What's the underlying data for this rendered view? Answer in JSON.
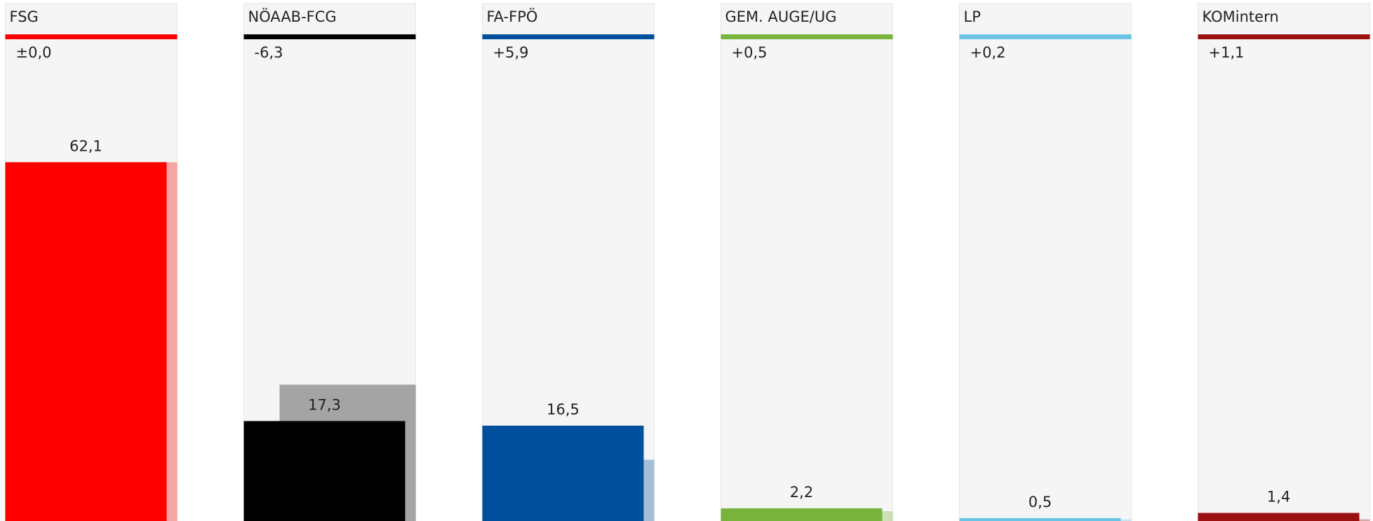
{
  "chart_data": {
    "type": "bar",
    "categories": [
      "FSG",
      "NÖAAB-FCG",
      "FA-FPÖ",
      "GEM. AUGE/UG",
      "LP",
      "KOMintern"
    ],
    "colors": [
      "#ff0000",
      "#000000",
      "#00509e",
      "#78b43c",
      "#6cc4e4",
      "#9b1010"
    ],
    "values": [
      62.1,
      17.3,
      16.5,
      2.2,
      0.5,
      1.4
    ],
    "value_labels": [
      "62,1",
      "17,3",
      "16,5",
      "2,2",
      "0,5",
      "1,4"
    ],
    "previous_values": [
      62.1,
      23.6,
      10.6,
      1.7,
      0.3,
      0.3
    ],
    "change_labels": [
      "±0,0",
      "-6,3",
      "+5,9",
      "+0,5",
      "+0,2",
      "+1,1"
    ]
  }
}
